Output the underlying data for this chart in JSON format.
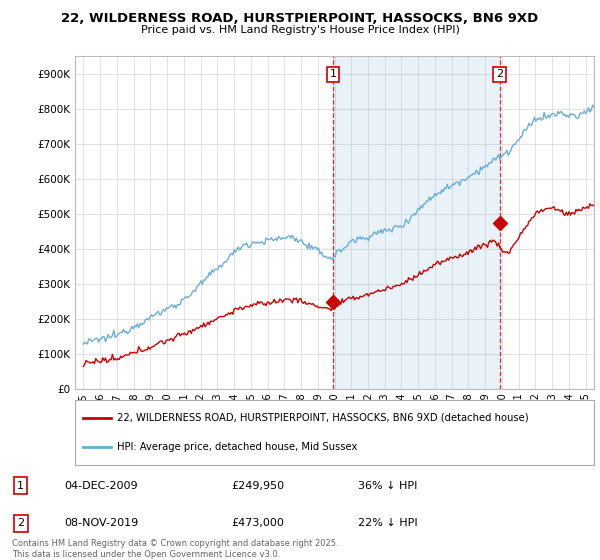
{
  "title": "22, WILDERNESS ROAD, HURSTPIERPOINT, HASSOCKS, BN6 9XD",
  "subtitle": "Price paid vs. HM Land Registry's House Price Index (HPI)",
  "xlim": [
    1994.5,
    2025.5
  ],
  "ylim": [
    0,
    950000
  ],
  "yticks": [
    0,
    100000,
    200000,
    300000,
    400000,
    500000,
    600000,
    700000,
    800000,
    900000
  ],
  "ytick_labels": [
    "£0",
    "£100K",
    "£200K",
    "£300K",
    "£400K",
    "£500K",
    "£600K",
    "£700K",
    "£800K",
    "£900K"
  ],
  "hpi_color": "#6aaed6",
  "price_color": "#cc0000",
  "shade_color": "#ddeeff",
  "marker1_x": 2009.92,
  "marker1_y": 249950,
  "marker1_label": "04-DEC-2009",
  "marker1_price": "£249,950",
  "marker1_note": "36% ↓ HPI",
  "marker2_x": 2019.86,
  "marker2_y": 473000,
  "marker2_label": "08-NOV-2019",
  "marker2_price": "£473,000",
  "marker2_note": "22% ↓ HPI",
  "legend_line1": "22, WILDERNESS ROAD, HURSTPIERPOINT, HASSOCKS, BN6 9XD (detached house)",
  "legend_line2": "HPI: Average price, detached house, Mid Sussex",
  "footer": "Contains HM Land Registry data © Crown copyright and database right 2025.\nThis data is licensed under the Open Government Licence v3.0.",
  "background_color": "#ffffff",
  "grid_color": "#dddddd"
}
